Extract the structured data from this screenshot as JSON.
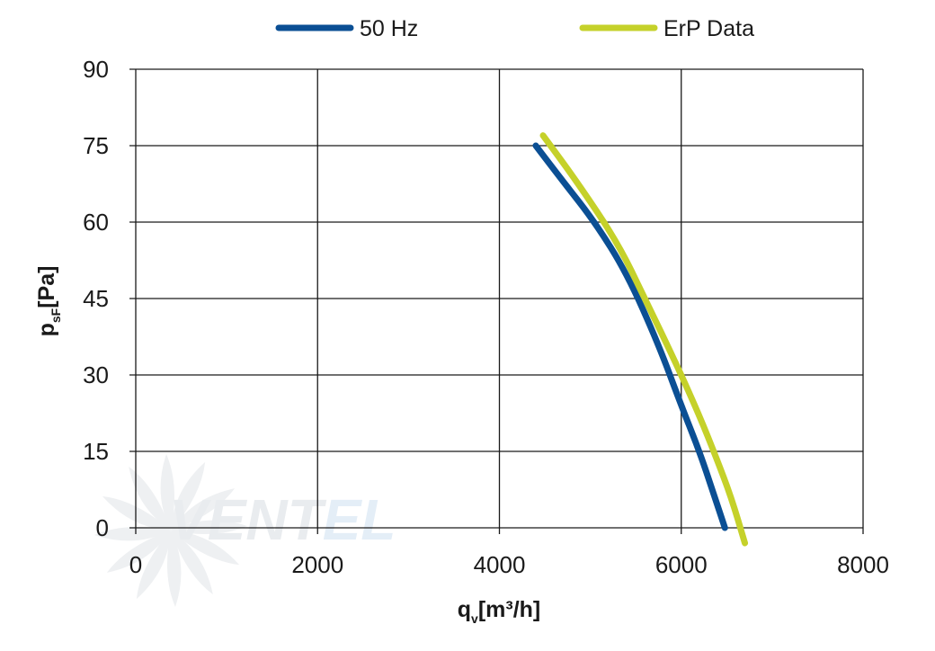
{
  "chart_data": {
    "type": "line",
    "xlim": [
      0,
      8000
    ],
    "ylim": [
      0,
      90
    ],
    "x_ticks": [
      0,
      2000,
      4000,
      6000,
      8000
    ],
    "y_ticks": [
      0,
      15,
      30,
      45,
      60,
      75,
      90
    ],
    "x_tick_labels": [
      "0",
      "2000",
      "4000",
      "6000",
      "8000"
    ],
    "y_tick_labels": [
      "0",
      "15",
      "30",
      "45",
      "60",
      "75",
      "90"
    ],
    "xlabel": {
      "main": "q",
      "sub": "v",
      "unit": "[m³/h]"
    },
    "ylabel": {
      "main": "p",
      "sub": "sF",
      "unit": "[Pa]"
    },
    "grid": true,
    "legend_position": "top-center",
    "watermark": "VENTEL",
    "series": [
      {
        "name": "50 Hz",
        "color": "#0b4f94",
        "points": [
          [
            4400,
            75
          ],
          [
            4700,
            68
          ],
          [
            5050,
            60
          ],
          [
            5400,
            50
          ],
          [
            5750,
            36
          ],
          [
            6000,
            24
          ],
          [
            6200,
            15
          ],
          [
            6350,
            7
          ],
          [
            6480,
            0
          ]
        ]
      },
      {
        "name": "ErP Data",
        "color": "#c5d12a",
        "points": [
          [
            4480,
            77
          ],
          [
            4850,
            68
          ],
          [
            5300,
            56
          ],
          [
            5600,
            45
          ],
          [
            5950,
            32
          ],
          [
            6200,
            22
          ],
          [
            6380,
            14
          ],
          [
            6550,
            6
          ],
          [
            6700,
            -3
          ]
        ]
      }
    ]
  }
}
